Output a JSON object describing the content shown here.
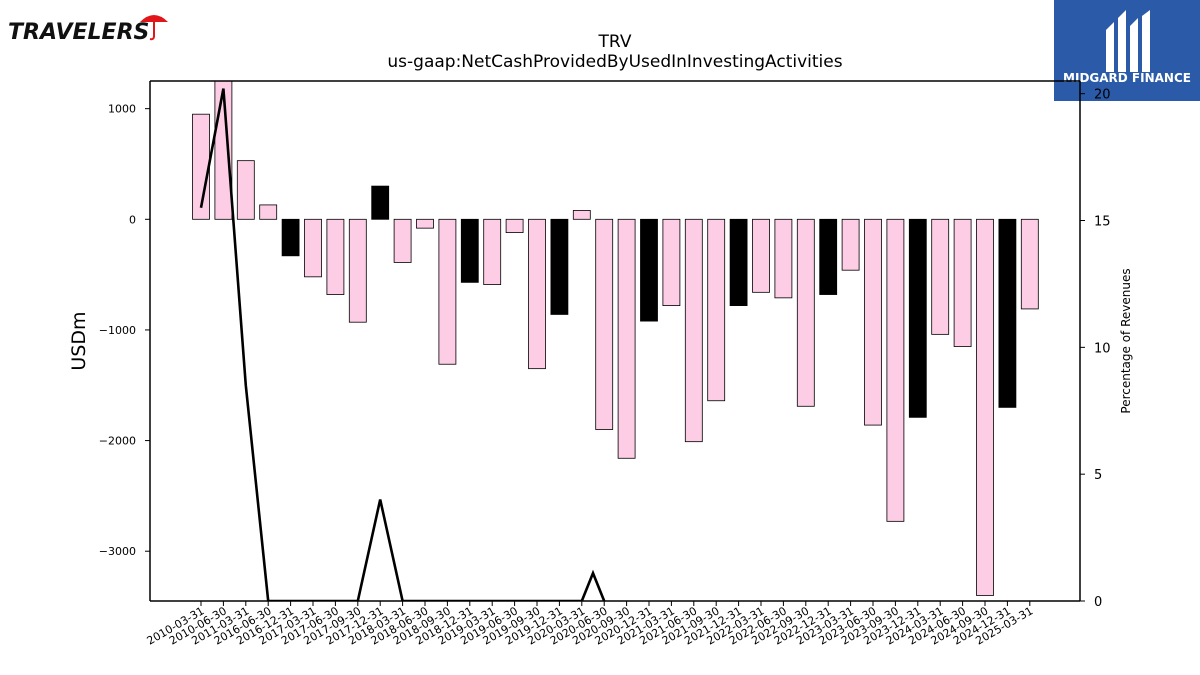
{
  "brand": {
    "left_logo_text": "TRAVELERS",
    "right_logo_text": "MIDGARD FINANCE",
    "right_logo_bg": "#2b5aa8",
    "left_logo_accent": "#e0161b"
  },
  "chart_data": {
    "type": "bar",
    "title": "TRV",
    "subtitle": "us-gaap:NetCashProvidedByUsedInInvestingActivities",
    "ylabel": "USDm",
    "y2label": "Percentage of Revenues",
    "ylim": [
      -3450,
      1250
    ],
    "y2lim": [
      0,
      20.5
    ],
    "yticks": [
      1000,
      0,
      -1000,
      -2000,
      -3000
    ],
    "y2ticks": [
      0,
      5,
      10,
      15,
      20
    ],
    "categories": [
      "2010-03-31",
      "2010-06-30",
      "2011-03-31",
      "2016-06-30",
      "2016-12-31",
      "2017-03-31",
      "2017-06-30",
      "2017-09-30",
      "2017-12-31",
      "2018-03-31",
      "2018-06-30",
      "2018-09-30",
      "2018-12-31",
      "2019-03-31",
      "2019-06-30",
      "2019-09-30",
      "2019-12-31",
      "2020-03-31",
      "2020-06-30",
      "2020-09-30",
      "2020-12-31",
      "2021-03-31",
      "2021-06-30",
      "2021-09-30",
      "2021-12-31",
      "2022-03-31",
      "2022-06-30",
      "2022-09-30",
      "2022-12-31",
      "2023-03-31",
      "2023-06-30",
      "2023-09-30",
      "2023-12-31",
      "2024-03-31",
      "2024-06-30",
      "2024-09-30",
      "2024-12-31",
      "2025-03-31"
    ],
    "series": [
      {
        "type": "bar",
        "values": [
          950,
          1250,
          530,
          130,
          -330,
          -520,
          -680,
          -930,
          300,
          -390,
          -80,
          -1310,
          -570,
          -590,
          -120,
          -1350,
          -860,
          80,
          -1900,
          -2160,
          -920,
          -780,
          -2010,
          -1640,
          -780,
          -660,
          -710,
          -1690,
          -680,
          -460,
          -1860,
          -2730,
          -1790,
          -1040,
          -1150,
          -3400,
          -1700,
          -810
        ],
        "colors": [
          "#fccde4",
          "#fccde4",
          "#fccde4",
          "#fccde4",
          "#000000",
          "#fccde4",
          "#fccde4",
          "#fccde4",
          "#000000",
          "#fccde4",
          "#fccde4",
          "#fccde4",
          "#000000",
          "#fccde4",
          "#fccde4",
          "#fccde4",
          "#000000",
          "#fccde4",
          "#fccde4",
          "#fccde4",
          "#000000",
          "#fccde4",
          "#fccde4",
          "#fccde4",
          "#000000",
          "#fccde4",
          "#fccde4",
          "#fccde4",
          "#000000",
          "#fccde4",
          "#fccde4",
          "#fccde4",
          "#000000",
          "#fccde4",
          "#fccde4",
          "#fccde4",
          "#000000",
          "#fccde4"
        ]
      },
      {
        "type": "line",
        "axis": "right",
        "color": "#000000",
        "points": [
          [
            0,
            15.5
          ],
          [
            1,
            20.2
          ],
          [
            2,
            8.5
          ],
          [
            3,
            0
          ],
          [
            7,
            0
          ],
          [
            8,
            4.0
          ],
          [
            9,
            0
          ],
          [
            17,
            0
          ],
          [
            17.5,
            1.1
          ],
          [
            18,
            0
          ]
        ]
      }
    ],
    "grid": false,
    "legend": "none"
  }
}
